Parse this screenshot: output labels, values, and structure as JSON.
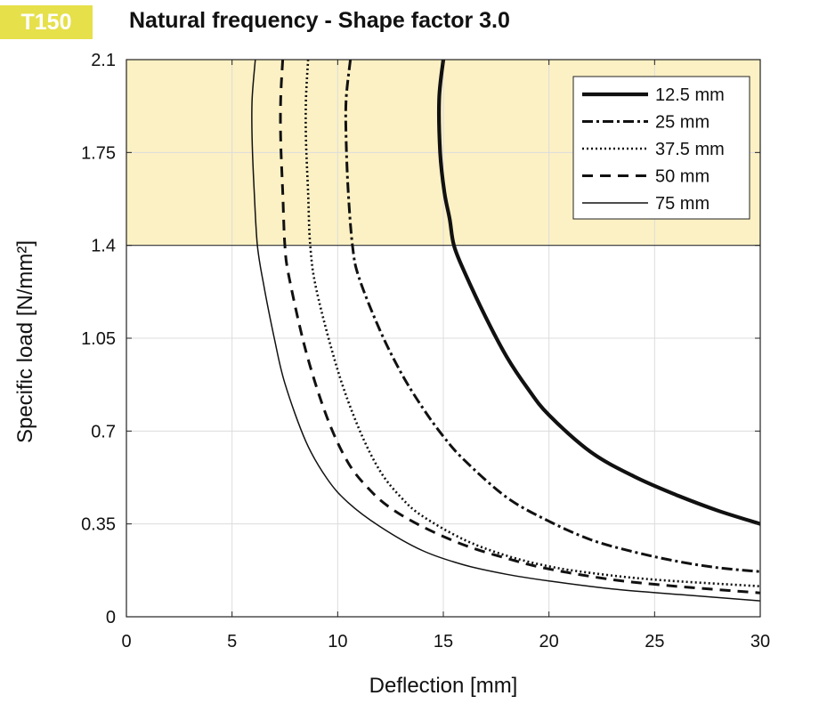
{
  "header": {
    "badge": "T150",
    "badge_color": "#e6e04a",
    "title": "Natural frequency - Shape factor 3.0"
  },
  "chart_data": {
    "type": "line",
    "title": "Natural frequency - Shape factor 3.0",
    "xlabel": "Deflection  [mm]",
    "ylabel": "Specific load [N/mm²]",
    "xlim": [
      0,
      30
    ],
    "ylim": [
      0,
      2.1
    ],
    "xticks": [
      0,
      5,
      10,
      15,
      20,
      25,
      30
    ],
    "yticks": [
      0,
      0.35,
      0.7,
      1.05,
      1.4,
      1.75,
      2.1
    ],
    "ytick_labels": [
      "0",
      "0.35",
      "0.7",
      "1.05",
      "1.4",
      "1.75",
      "2.1"
    ],
    "grid": true,
    "legend_position": "top-right",
    "highlight_band": {
      "y_from": 1.4,
      "y_to": 2.1,
      "color": "#fcf1c4"
    },
    "series": [
      {
        "name": "12.5 mm",
        "style": "solid-thick",
        "points": [
          [
            15.0,
            2.1
          ],
          [
            14.8,
            1.95
          ],
          [
            14.85,
            1.75
          ],
          [
            15.05,
            1.6
          ],
          [
            15.3,
            1.5
          ],
          [
            15.5,
            1.4
          ],
          [
            16.0,
            1.3
          ],
          [
            17.0,
            1.13
          ],
          [
            18.0,
            0.98
          ],
          [
            19.0,
            0.86
          ],
          [
            20.0,
            0.76
          ],
          [
            22.0,
            0.62
          ],
          [
            24.0,
            0.53
          ],
          [
            26.0,
            0.46
          ],
          [
            28.0,
            0.4
          ],
          [
            30.0,
            0.35
          ]
        ]
      },
      {
        "name": "25 mm",
        "style": "dashdot",
        "points": [
          [
            10.6,
            2.1
          ],
          [
            10.4,
            1.95
          ],
          [
            10.4,
            1.8
          ],
          [
            10.5,
            1.6
          ],
          [
            10.7,
            1.4
          ],
          [
            11.0,
            1.28
          ],
          [
            12.0,
            1.08
          ],
          [
            13.0,
            0.92
          ],
          [
            14.0,
            0.79
          ],
          [
            15.0,
            0.68
          ],
          [
            16.0,
            0.59
          ],
          [
            18.0,
            0.45
          ],
          [
            20.0,
            0.36
          ],
          [
            22.0,
            0.29
          ],
          [
            24.0,
            0.245
          ],
          [
            26.0,
            0.21
          ],
          [
            28.0,
            0.185
          ],
          [
            30.0,
            0.17
          ]
        ]
      },
      {
        "name": "37.5 mm",
        "style": "dotted",
        "points": [
          [
            8.6,
            2.1
          ],
          [
            8.5,
            1.95
          ],
          [
            8.5,
            1.8
          ],
          [
            8.6,
            1.6
          ],
          [
            8.7,
            1.4
          ],
          [
            9.0,
            1.23
          ],
          [
            10.0,
            0.93
          ],
          [
            11.0,
            0.71
          ],
          [
            12.0,
            0.55
          ],
          [
            13.0,
            0.45
          ],
          [
            14.0,
            0.38
          ],
          [
            16.0,
            0.29
          ],
          [
            18.0,
            0.23
          ],
          [
            20.0,
            0.19
          ],
          [
            22.0,
            0.165
          ],
          [
            25.0,
            0.14
          ],
          [
            30.0,
            0.115
          ]
        ]
      },
      {
        "name": "50 mm",
        "style": "dashed",
        "points": [
          [
            7.4,
            2.1
          ],
          [
            7.3,
            1.95
          ],
          [
            7.3,
            1.8
          ],
          [
            7.4,
            1.6
          ],
          [
            7.5,
            1.4
          ],
          [
            7.7,
            1.28
          ],
          [
            8.5,
            1.0
          ],
          [
            9.5,
            0.75
          ],
          [
            10.5,
            0.58
          ],
          [
            11.5,
            0.48
          ],
          [
            12.5,
            0.41
          ],
          [
            14.0,
            0.34
          ],
          [
            16.0,
            0.27
          ],
          [
            18.0,
            0.22
          ],
          [
            20.0,
            0.18
          ],
          [
            23.0,
            0.14
          ],
          [
            26.0,
            0.115
          ],
          [
            30.0,
            0.09
          ]
        ]
      },
      {
        "name": "75 mm",
        "style": "solid-thin",
        "points": [
          [
            6.1,
            2.1
          ],
          [
            5.95,
            1.95
          ],
          [
            5.95,
            1.8
          ],
          [
            6.05,
            1.6
          ],
          [
            6.2,
            1.4
          ],
          [
            6.5,
            1.25
          ],
          [
            7.0,
            1.05
          ],
          [
            7.5,
            0.88
          ],
          [
            8.5,
            0.66
          ],
          [
            9.5,
            0.52
          ],
          [
            10.5,
            0.43
          ],
          [
            12.0,
            0.34
          ],
          [
            14.0,
            0.25
          ],
          [
            16.0,
            0.195
          ],
          [
            18.0,
            0.16
          ],
          [
            20.0,
            0.135
          ],
          [
            23.0,
            0.105
          ],
          [
            26.0,
            0.085
          ],
          [
            30.0,
            0.06
          ]
        ]
      }
    ]
  }
}
